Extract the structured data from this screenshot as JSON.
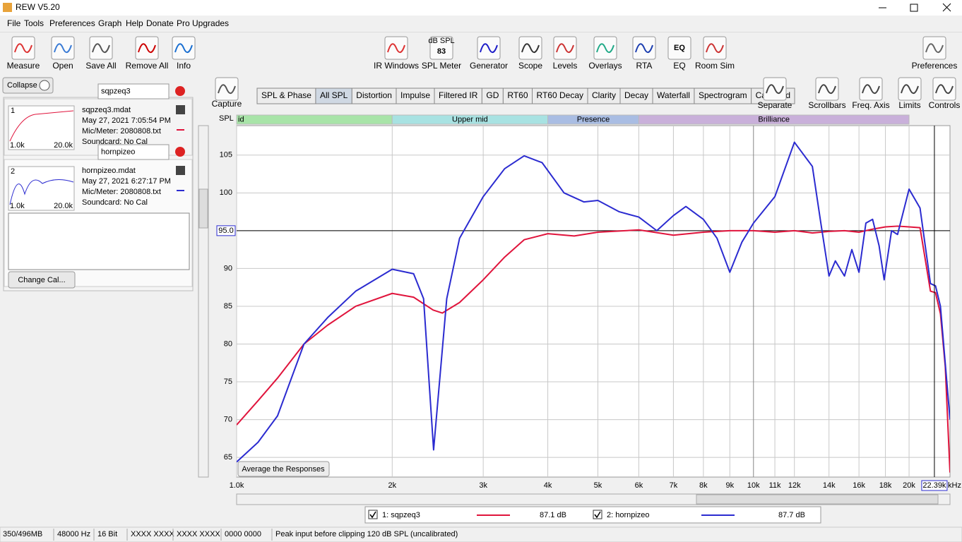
{
  "window": {
    "title": "REW V5.20"
  },
  "menu": [
    "File",
    "Tools",
    "Preferences",
    "Graph",
    "Help",
    "Donate",
    "Pro Upgrades"
  ],
  "toolbar_left": [
    "Measure",
    "Open",
    "Save All",
    "Remove All",
    "Info"
  ],
  "toolbar_center": [
    "IR Windows",
    "SPL Meter",
    "Generator",
    "Scope",
    "Levels",
    "Overlays",
    "RTA",
    "EQ",
    "Room Sim"
  ],
  "spl_meter_icon": {
    "unit": "dB SPL",
    "reading": "83"
  },
  "eq_icon": "EQ",
  "toolbar_right": "Preferences",
  "panel": {
    "collapse": "Collapse",
    "change_cal": "Change Cal...",
    "items": [
      {
        "index": "1",
        "name_field": "sqpzeq3",
        "file": "sqpzeq3.mdat",
        "date": "May 27, 2021 7:05:54 PM",
        "mic": "Mic/Meter: 2080808.txt",
        "soundcard": "Soundcard: No Cal",
        "thumb_min": "1.0k",
        "thumb_max": "20.0k"
      },
      {
        "index": "2",
        "name_field": "hornpizeo",
        "file": "hornpizeo.mdat",
        "date": "May 27, 2021 6:27:17 PM",
        "mic": "Mic/Meter: 2080808.txt",
        "soundcard": "Soundcard: No Cal",
        "thumb_min": "1.0k",
        "thumb_max": "20.0k"
      }
    ]
  },
  "graph_controls": {
    "capture": "Capture",
    "tabs": [
      "SPL & Phase",
      "All SPL",
      "Distortion",
      "Impulse",
      "Filtered IR",
      "GD",
      "RT60",
      "RT60 Decay",
      "Clarity",
      "Decay",
      "Waterfall",
      "Spectrogram",
      "Captured"
    ],
    "selected_tab": 1,
    "right_buttons": [
      "Separate",
      "Scrollbars",
      "Freq. Axis",
      "Limits",
      "Controls"
    ]
  },
  "chart_data": {
    "type": "line",
    "y_label": "SPL",
    "x_unit": "kHz",
    "xscale": "log",
    "grid": true,
    "xlim": [
      1000,
      24000
    ],
    "ylim": [
      62.4,
      108.9
    ],
    "xticks": [
      {
        "value": 1000,
        "label": "1.0k"
      },
      {
        "value": 2000,
        "label": "2k"
      },
      {
        "value": 3000,
        "label": "3k"
      },
      {
        "value": 4000,
        "label": "4k"
      },
      {
        "value": 5000,
        "label": "5k"
      },
      {
        "value": 6000,
        "label": "6k"
      },
      {
        "value": 7000,
        "label": "7k"
      },
      {
        "value": 8000,
        "label": "8k"
      },
      {
        "value": 9000,
        "label": "9k"
      },
      {
        "value": 10000,
        "label": "10k"
      },
      {
        "value": 11000,
        "label": "11k"
      },
      {
        "value": 12000,
        "label": "12k"
      },
      {
        "value": 14000,
        "label": "14k"
      },
      {
        "value": 16000,
        "label": "16k"
      },
      {
        "value": 18000,
        "label": "18k"
      },
      {
        "value": 20000,
        "label": "20k"
      }
    ],
    "yticks": [
      65,
      70,
      75,
      80,
      85,
      90,
      95,
      100,
      105
    ],
    "bands": {
      "labels": [
        "id",
        "Upper mid",
        "Presence",
        "Brilliance"
      ],
      "edges": [
        1000,
        2000,
        4000,
        6000,
        20000
      ],
      "colors": [
        "#a8e4a8",
        "#a8e2e2",
        "#a9bde3",
        "#c9b0da"
      ]
    },
    "reference_line": {
      "value": 95,
      "label": "95.0"
    },
    "cursor": {
      "value": 22390,
      "label": "22.39k"
    },
    "button": "Average the Responses",
    "series": [
      {
        "name": "1: sqpzeq3",
        "color": "#e0143c",
        "level": "87.1 dB",
        "x": [
          1000,
          1100,
          1200,
          1350,
          1500,
          1700,
          2000,
          2200,
          2400,
          2500,
          2700,
          3000,
          3300,
          3600,
          4000,
          4500,
          5000,
          6000,
          7000,
          8000,
          9000,
          10000,
          11000,
          12000,
          13000,
          14000,
          15000,
          16000,
          17000,
          18000,
          19000,
          20000,
          21000,
          22000,
          22500,
          23000,
          23500,
          24000
        ],
        "values": [
          69.3,
          72.5,
          75.5,
          80,
          82.5,
          85,
          86.7,
          86.2,
          84.5,
          84.1,
          85.5,
          88.5,
          91.5,
          93.8,
          94.6,
          94.3,
          94.8,
          95.1,
          94.4,
          94.8,
          95.0,
          95.0,
          94.8,
          95.0,
          94.7,
          94.9,
          95.0,
          94.8,
          95.2,
          95.5,
          95.6,
          95.5,
          95.4,
          87,
          86.8,
          84,
          77,
          63
        ]
      },
      {
        "name": "2: hornpizeo",
        "color": "#2b2bd0",
        "level": "87.7 dB",
        "x": [
          1000,
          1100,
          1200,
          1350,
          1500,
          1700,
          2000,
          2200,
          2300,
          2405,
          2550,
          2700,
          3000,
          3300,
          3600,
          3900,
          4300,
          4700,
          5000,
          5500,
          6000,
          6500,
          7000,
          7400,
          8000,
          8500,
          9000,
          9500,
          10000,
          11000,
          12000,
          13000,
          13500,
          14000,
          14400,
          15000,
          15500,
          16000,
          16500,
          17000,
          17500,
          17900,
          18500,
          19000,
          20000,
          21000,
          22000,
          22500,
          23000,
          24000
        ],
        "values": [
          64.4,
          67,
          70.5,
          80,
          83.5,
          87,
          89.9,
          89.3,
          86,
          66,
          86,
          94,
          99.5,
          103.2,
          104.9,
          104,
          100,
          98.8,
          99,
          97.5,
          96.8,
          95,
          97,
          98.2,
          96.5,
          94,
          89.5,
          93.5,
          96,
          99.5,
          106.7,
          103.5,
          96,
          89,
          91,
          89,
          92.5,
          89.5,
          96,
          96.5,
          93,
          88.5,
          95,
          94.5,
          100.5,
          98,
          88,
          87.7,
          85,
          70
        ]
      }
    ]
  },
  "status_bar": [
    "350/496MB",
    "48000 Hz",
    "16 Bit",
    "XXXX XXXX",
    "XXXX XXXX",
    "0000 0000",
    "Peak input before clipping 120 dB SPL (uncalibrated)"
  ]
}
